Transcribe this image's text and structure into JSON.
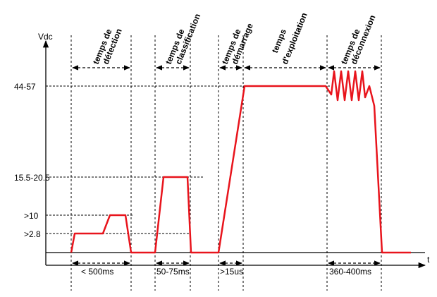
{
  "axes": {
    "y_label": "Vdc",
    "x_label": "t"
  },
  "levels": [
    {
      "label": "44-57",
      "volts": 50.5
    },
    {
      "label": "15.5-20.5",
      "volts": 18
    },
    {
      "label": ">10",
      "volts": 10
    },
    {
      "label": ">2.8",
      "volts": 2.8
    }
  ],
  "phases": [
    {
      "line1": "temps de",
      "line2": "détection"
    },
    {
      "line1": "temps de",
      "line2": "classification"
    },
    {
      "line1": "temps de",
      "line2": "démarrage"
    },
    {
      "line1": "temps",
      "line2": "d'exploitation"
    },
    {
      "line1": "temps de",
      "line2": "déconnexion"
    }
  ],
  "durations": [
    {
      "label": "< 500ms"
    },
    {
      "label": "50-75ms"
    },
    {
      "label": ">15us"
    },
    {
      "label": "360-400ms"
    }
  ],
  "colors": {
    "signal": "#e8141c",
    "lines": "#000000"
  }
}
